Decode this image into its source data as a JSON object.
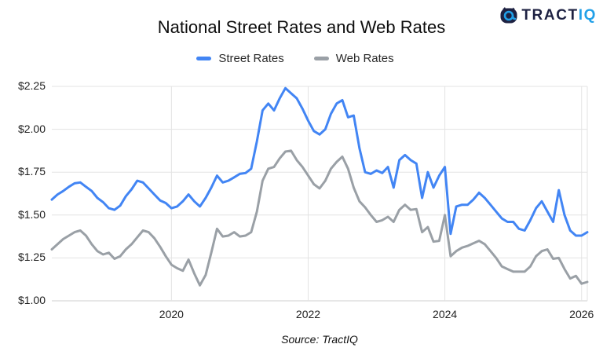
{
  "logo": {
    "brand_primary": "TRACT",
    "brand_accent": "IQ",
    "navy": "#1d2142",
    "blue": "#21a0e8"
  },
  "chart_data": {
    "type": "line",
    "title": "National Street Rates and Web Rates",
    "source_note": "Source: TractIQ",
    "x_unit": "month",
    "x_start": "2018-04",
    "x_end": "2026-02",
    "ylim": [
      1.0,
      2.25
    ],
    "grid": true,
    "legend_position": "top",
    "y_ticks": [
      {
        "value": 2.25,
        "label": "$2.25"
      },
      {
        "value": 2.0,
        "label": "$2.00"
      },
      {
        "value": 1.75,
        "label": "$1.75"
      },
      {
        "value": 1.5,
        "label": "$1.50"
      },
      {
        "value": 1.25,
        "label": "$1.25"
      },
      {
        "value": 1.0,
        "label": "$1.00"
      }
    ],
    "x_ticks": [
      {
        "label": "2020",
        "month_index": 21
      },
      {
        "label": "2022",
        "month_index": 45
      },
      {
        "label": "2024",
        "month_index": 69
      },
      {
        "label": "2026",
        "month_index": 93
      }
    ],
    "series": [
      {
        "name": "Street Rates",
        "color": "#4285f4",
        "values": [
          1.59,
          1.62,
          1.64,
          1.665,
          1.685,
          1.69,
          1.665,
          1.64,
          1.6,
          1.575,
          1.54,
          1.53,
          1.555,
          1.61,
          1.65,
          1.7,
          1.69,
          1.655,
          1.62,
          1.585,
          1.57,
          1.54,
          1.55,
          1.58,
          1.62,
          1.58,
          1.55,
          1.6,
          1.66,
          1.73,
          1.69,
          1.7,
          1.72,
          1.74,
          1.745,
          1.77,
          1.93,
          2.11,
          2.15,
          2.11,
          2.18,
          2.24,
          2.21,
          2.18,
          2.12,
          2.05,
          1.99,
          1.97,
          2.0,
          2.09,
          2.15,
          2.17,
          2.07,
          2.08,
          1.89,
          1.75,
          1.74,
          1.76,
          1.745,
          1.78,
          1.66,
          1.82,
          1.85,
          1.82,
          1.8,
          1.6,
          1.75,
          1.66,
          1.73,
          1.78,
          1.39,
          1.55,
          1.56,
          1.56,
          1.59,
          1.63,
          1.6,
          1.56,
          1.52,
          1.48,
          1.46,
          1.46,
          1.42,
          1.41,
          1.47,
          1.54,
          1.58,
          1.52,
          1.46,
          1.645,
          1.5,
          1.41,
          1.38,
          1.38,
          1.4
        ]
      },
      {
        "name": "Web Rates",
        "color": "#9aa0a6",
        "values": [
          1.3,
          1.33,
          1.36,
          1.38,
          1.4,
          1.41,
          1.38,
          1.33,
          1.29,
          1.27,
          1.28,
          1.245,
          1.26,
          1.3,
          1.33,
          1.37,
          1.41,
          1.4,
          1.365,
          1.315,
          1.26,
          1.21,
          1.19,
          1.175,
          1.24,
          1.16,
          1.09,
          1.15,
          1.28,
          1.42,
          1.375,
          1.38,
          1.4,
          1.375,
          1.38,
          1.4,
          1.52,
          1.7,
          1.77,
          1.78,
          1.83,
          1.87,
          1.875,
          1.82,
          1.78,
          1.73,
          1.68,
          1.655,
          1.7,
          1.77,
          1.81,
          1.84,
          1.77,
          1.66,
          1.58,
          1.545,
          1.5,
          1.46,
          1.47,
          1.49,
          1.46,
          1.53,
          1.56,
          1.53,
          1.535,
          1.4,
          1.43,
          1.345,
          1.35,
          1.5,
          1.26,
          1.29,
          1.31,
          1.32,
          1.335,
          1.35,
          1.33,
          1.29,
          1.25,
          1.2,
          1.185,
          1.17,
          1.17,
          1.17,
          1.2,
          1.26,
          1.29,
          1.3,
          1.245,
          1.25,
          1.185,
          1.13,
          1.145,
          1.1,
          1.11
        ]
      }
    ]
  }
}
